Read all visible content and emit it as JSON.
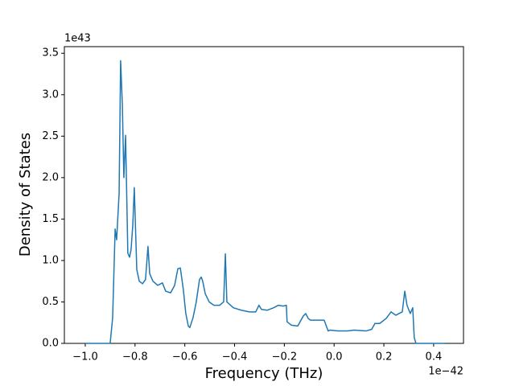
{
  "chart_data": {
    "type": "line",
    "xlabel": "Frequency (THz)",
    "ylabel": "Density of States",
    "x_offset_text": "1e−42",
    "y_offset_text": "1e43",
    "xlim": [
      -1.084,
      0.52
    ],
    "ylim": [
      0,
      3.58
    ],
    "xticks": [
      {
        "value": -1.0,
        "label": "−1.0"
      },
      {
        "value": -0.8,
        "label": "−0.8"
      },
      {
        "value": -0.6,
        "label": "−0.6"
      },
      {
        "value": -0.4,
        "label": "−0.4"
      },
      {
        "value": -0.2,
        "label": "−0.2"
      },
      {
        "value": 0,
        "label": "0.0"
      },
      0.2,
      0.4
    ],
    "yticks": [
      {
        "value": 0,
        "label": "0.0"
      },
      0.5,
      {
        "value": 1,
        "label": "1.0"
      },
      1.5,
      {
        "value": 2,
        "label": "2.0"
      },
      2.5,
      {
        "value": 3,
        "label": "3.0"
      },
      3.5
    ],
    "grid": false,
    "series": [
      {
        "color": "#1f77b4",
        "x": [
          -1.0,
          -0.9,
          -0.89,
          -0.88,
          -0.874,
          -0.864,
          -0.858,
          -0.851,
          -0.845,
          -0.838,
          -0.829,
          -0.822,
          -0.816,
          -0.809,
          -0.803,
          -0.793,
          -0.783,
          -0.77,
          -0.758,
          -0.748,
          -0.741,
          -0.728,
          -0.709,
          -0.69,
          -0.677,
          -0.657,
          -0.641,
          -0.628,
          -0.618,
          -0.606,
          -0.596,
          -0.586,
          -0.58,
          -0.567,
          -0.554,
          -0.541,
          -0.534,
          -0.528,
          -0.518,
          -0.502,
          -0.483,
          -0.46,
          -0.444,
          -0.437,
          -0.431,
          -0.405,
          -0.373,
          -0.34,
          -0.315,
          -0.302,
          -0.292,
          -0.269,
          -0.243,
          -0.224,
          -0.205,
          -0.192,
          -0.189,
          -0.172,
          -0.146,
          -0.124,
          -0.114,
          -0.104,
          -0.095,
          -0.066,
          -0.04,
          -0.024,
          -0.017,
          0.015,
          0.054,
          0.08,
          0.128,
          0.151,
          0.164,
          0.183,
          0.209,
          0.229,
          0.248,
          0.274,
          0.284,
          0.293,
          0.306,
          0.316,
          0.322,
          0.329,
          0.445
        ],
        "values": [
          0,
          0,
          0.31,
          1.38,
          1.25,
          1.81,
          3.41,
          2.88,
          2.0,
          2.51,
          1.09,
          1.04,
          1.13,
          1.43,
          1.88,
          0.89,
          0.75,
          0.72,
          0.77,
          1.17,
          0.84,
          0.75,
          0.7,
          0.73,
          0.63,
          0.61,
          0.7,
          0.9,
          0.91,
          0.65,
          0.36,
          0.21,
          0.19,
          0.31,
          0.5,
          0.77,
          0.8,
          0.75,
          0.6,
          0.5,
          0.46,
          0.46,
          0.5,
          1.08,
          0.5,
          0.43,
          0.4,
          0.38,
          0.38,
          0.46,
          0.41,
          0.4,
          0.43,
          0.46,
          0.45,
          0.46,
          0.26,
          0.22,
          0.21,
          0.33,
          0.36,
          0.3,
          0.28,
          0.28,
          0.28,
          0.15,
          0.16,
          0.15,
          0.15,
          0.16,
          0.15,
          0.17,
          0.24,
          0.24,
          0.3,
          0.38,
          0.34,
          0.38,
          0.63,
          0.46,
          0.36,
          0.43,
          0.07,
          0,
          0
        ]
      }
    ]
  }
}
